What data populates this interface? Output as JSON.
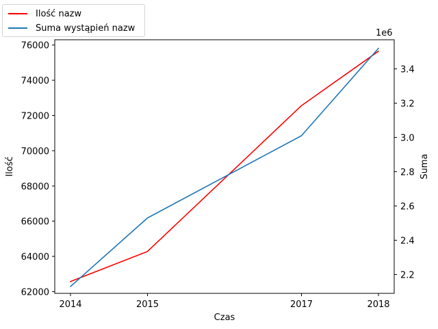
{
  "chart_data": {
    "type": "line",
    "x": [
      2014,
      2015,
      2017,
      2018
    ],
    "xlabel": "Czas",
    "x_ticks": [
      "2014",
      "2015",
      "2017",
      "2018"
    ],
    "left_axis": {
      "label": "Ilość",
      "ylim": [
        61900,
        76300
      ],
      "ticks": [
        "62000",
        "64000",
        "66000",
        "68000",
        "70000",
        "72000",
        "74000",
        "76000"
      ]
    },
    "right_axis": {
      "label": "Suma",
      "offset_text": "1e6",
      "ylim": [
        2.09,
        3.57
      ],
      "ticks": [
        "2.2",
        "2.4",
        "2.6",
        "2.8",
        "3.0",
        "3.2",
        "3.4"
      ]
    },
    "series": [
      {
        "name": "Ilość nazw",
        "axis": "left",
        "color": "#ff0000",
        "values": [
          62570,
          64280,
          72560,
          75650
        ]
      },
      {
        "name": "Suma wystąpień nazw",
        "axis": "right",
        "color": "#1f77b4",
        "values": [
          2.13,
          2.53,
          3.01,
          3.52
        ]
      }
    ],
    "legend_position": "top-left, outside plot",
    "grid": false
  }
}
